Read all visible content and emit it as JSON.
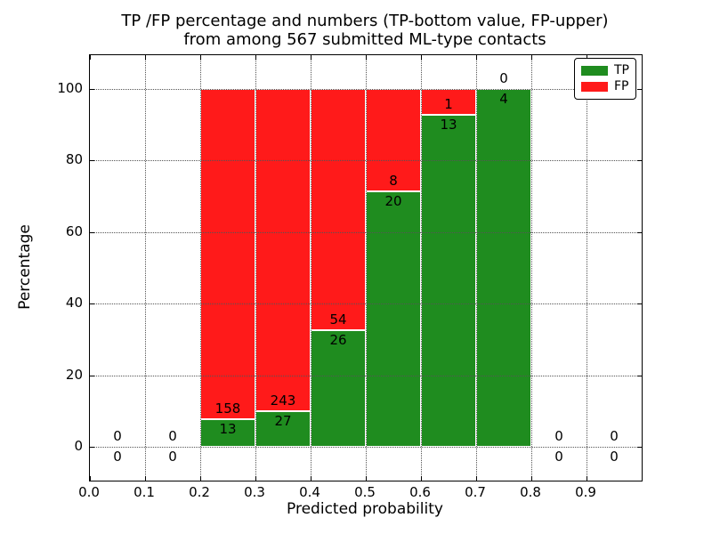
{
  "figure": {
    "title_line1": "TP /FP percentage and numbers (TP-bottom value, FP-upper)",
    "title_line2": "from among 567 submitted ML-type contacts",
    "xlabel": "Predicted probability",
    "ylabel": "Percentage"
  },
  "chart_data": {
    "type": "bar",
    "stacked": true,
    "orientation": "vertical",
    "title": "TP /FP percentage and numbers (TP-bottom value, FP-upper) from among 567 submitted ML-type contacts",
    "xlabel": "Predicted probability",
    "ylabel": "Percentage",
    "xlim": [
      0.0,
      1.0
    ],
    "ylim": [
      -10,
      110
    ],
    "grid": "dotted",
    "x_tick_labels": [
      "0.0",
      "0.1",
      "0.2",
      "0.3",
      "0.4",
      "0.5",
      "0.6",
      "0.7",
      "0.8",
      "0.9"
    ],
    "y_tick_labels": [
      "0",
      "20",
      "40",
      "60",
      "80",
      "100"
    ],
    "legend_position": "upper right",
    "series": [
      {
        "name": "TP",
        "color": "#1f8c1f"
      },
      {
        "name": "FP",
        "color": "#ff1a1a"
      }
    ],
    "bins": [
      {
        "x_start": 0.0,
        "x_end": 0.1,
        "tp_count": 0,
        "fp_count": 0,
        "tp_pct": null,
        "fp_pct": null
      },
      {
        "x_start": 0.1,
        "x_end": 0.2,
        "tp_count": 0,
        "fp_count": 0,
        "tp_pct": null,
        "fp_pct": null
      },
      {
        "x_start": 0.2,
        "x_end": 0.3,
        "tp_count": 13,
        "fp_count": 158,
        "tp_pct": 7.6,
        "fp_pct": 92.4
      },
      {
        "x_start": 0.3,
        "x_end": 0.4,
        "tp_count": 27,
        "fp_count": 243,
        "tp_pct": 10.0,
        "fp_pct": 90.0
      },
      {
        "x_start": 0.4,
        "x_end": 0.5,
        "tp_count": 26,
        "fp_count": 54,
        "tp_pct": 32.5,
        "fp_pct": 67.5
      },
      {
        "x_start": 0.5,
        "x_end": 0.6,
        "tp_count": 20,
        "fp_count": 8,
        "tp_pct": 71.4,
        "fp_pct": 28.6
      },
      {
        "x_start": 0.6,
        "x_end": 0.7,
        "tp_count": 13,
        "fp_count": 1,
        "tp_pct": 92.9,
        "fp_pct": 7.1
      },
      {
        "x_start": 0.7,
        "x_end": 0.8,
        "tp_count": 4,
        "fp_count": 0,
        "tp_pct": 100.0,
        "fp_pct": 0.0
      },
      {
        "x_start": 0.8,
        "x_end": 0.9,
        "tp_count": 0,
        "fp_count": 0,
        "tp_pct": null,
        "fp_pct": null
      },
      {
        "x_start": 0.9,
        "x_end": 1.0,
        "tp_count": 0,
        "fp_count": 0,
        "tp_pct": null,
        "fp_pct": null
      }
    ]
  }
}
